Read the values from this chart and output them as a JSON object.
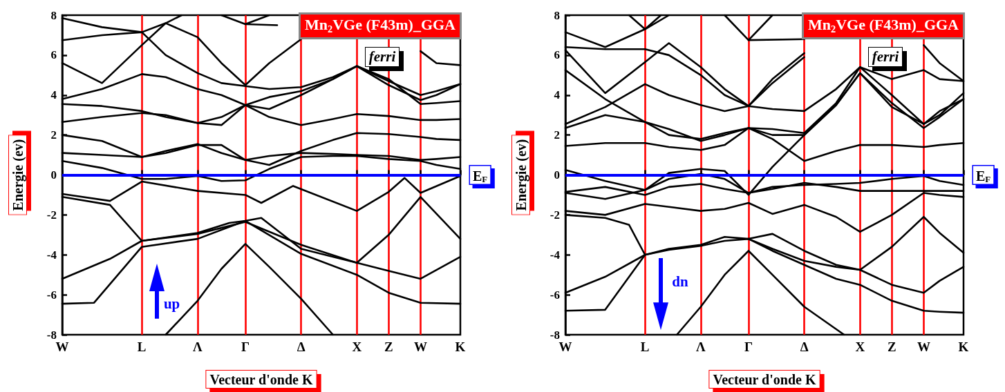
{
  "chart_data": [
    {
      "type": "line",
      "xlabel": "Vecteur d'onde K",
      "ylabel": "Energie (ev)",
      "annotations": [
        "Mn$_{2}$VGe (F43m)_GGA",
        "ferri",
        "up"
      ],
      "categories": [
        "W",
        null,
        null,
        null,
        null,
        null,
        null,
        null,
        null,
        null,
        "L",
        null,
        null,
        null,
        null,
        null,
        null,
        "Λ",
        null,
        null,
        null,
        null,
        null,
        "Γ",
        null,
        null,
        null,
        null,
        null,
        null,
        "Δ",
        null,
        null,
        null,
        null,
        null,
        null,
        "X",
        null,
        null,
        null,
        "Z",
        null,
        null,
        null,
        "W",
        null,
        null,
        null,
        null,
        "K"
      ],
      "ylim": [
        -8,
        8
      ],
      "yticks": [
        -8,
        -6,
        -4,
        -2,
        0,
        2,
        4,
        6,
        8
      ],
      "grid": "x",
      "ref_lines": [
        {
          "axis": "y",
          "value": 0,
          "label": "E$_{F}$",
          "color": "#0000ff"
        }
      ],
      "series": [
        {
          "color": "#000000",
          "values": [
            null,
            null,
            null,
            null,
            null,
            null,
            null,
            null,
            null,
            null,
            null,
            null,
            null,
            -8,
            null,
            null,
            null,
            -6.3,
            null,
            null,
            -4.7,
            null,
            null,
            -3.45,
            null,
            null,
            -4.6,
            null,
            null,
            null,
            -6.2,
            null,
            null,
            null,
            -8,
            null,
            null,
            null,
            null,
            null,
            null,
            null,
            null,
            null,
            null,
            null,
            null,
            null,
            null,
            null,
            null
          ]
        },
        {
          "color": "#000000",
          "values": [
            -6.45,
            null,
            null,
            null,
            -6.4,
            null,
            null,
            null,
            null,
            null,
            -3.6,
            null,
            null,
            null,
            null,
            null,
            null,
            -3.2,
            null,
            null,
            null,
            null,
            null,
            -2.3,
            null,
            null,
            null,
            null,
            null,
            null,
            -3.95,
            null,
            null,
            null,
            null,
            null,
            null,
            -5.0,
            null,
            null,
            null,
            -5.9,
            null,
            null,
            null,
            -6.4,
            null,
            null,
            null,
            null,
            -6.45
          ]
        },
        {
          "color": "#000000",
          "values": [
            -5.2,
            null,
            null,
            null,
            null,
            null,
            -4.2,
            null,
            null,
            null,
            -3.3,
            null,
            null,
            null,
            null,
            null,
            null,
            -2.9,
            null,
            null,
            null,
            -2.4,
            null,
            -2.3,
            null,
            -2.15,
            null,
            null,
            null,
            null,
            -3.7,
            null,
            null,
            null,
            null,
            null,
            null,
            -4.4,
            null,
            null,
            null,
            -4.8,
            null,
            null,
            null,
            -5.2,
            null,
            null,
            null,
            null,
            -4.1
          ]
        },
        {
          "color": "#000000",
          "values": [
            -1.1,
            null,
            null,
            null,
            null,
            null,
            -1.5,
            null,
            null,
            null,
            -3.3,
            null,
            null,
            null,
            null,
            null,
            null,
            -2.95,
            null,
            null,
            null,
            null,
            null,
            -2.35,
            null,
            null,
            null,
            null,
            null,
            null,
            -3.5,
            null,
            null,
            null,
            null,
            null,
            null,
            -4.4,
            null,
            null,
            null,
            -3.0,
            null,
            null,
            null,
            -1.1,
            null,
            null,
            null,
            null,
            -3.2
          ]
        },
        {
          "color": "#000000",
          "values": [
            -0.95,
            null,
            null,
            null,
            null,
            null,
            -1.3,
            null,
            null,
            null,
            -0.33,
            null,
            null,
            null,
            null,
            null,
            null,
            -0.8,
            null,
            null,
            null,
            null,
            null,
            -1.0,
            null,
            -1.4,
            null,
            null,
            null,
            -0.55,
            null,
            null,
            null,
            null,
            null,
            null,
            null,
            -1.8,
            null,
            null,
            null,
            -0.85,
            null,
            -0.15,
            null,
            -0.9,
            null,
            null,
            null,
            null,
            -0.05
          ]
        },
        {
          "color": "#000000",
          "values": [
            0.7,
            null,
            null,
            null,
            null,
            0.35,
            null,
            null,
            null,
            null,
            -0.2,
            null,
            null,
            -0.2,
            null,
            null,
            null,
            -0.05,
            null,
            null,
            -0.3,
            null,
            null,
            -0.27,
            null,
            null,
            0.3,
            null,
            null,
            null,
            0.9,
            null,
            null,
            null,
            0.95,
            null,
            null,
            0.95,
            null,
            null,
            null,
            0.8,
            null,
            null,
            null,
            0.7,
            null,
            0.5,
            null,
            null,
            0.3
          ]
        },
        {
          "color": "#000000",
          "values": [
            1.1,
            null,
            null,
            null,
            null,
            1.0,
            null,
            null,
            null,
            null,
            0.9,
            null,
            null,
            1.2,
            null,
            null,
            null,
            1.55,
            null,
            null,
            1.1,
            null,
            null,
            0.75,
            null,
            null,
            0.95,
            null,
            null,
            null,
            1.1,
            null,
            null,
            null,
            1.05,
            null,
            null,
            1.0,
            null,
            null,
            null,
            0.95,
            null,
            null,
            null,
            0.75,
            null,
            0.8,
            null,
            null,
            0.9
          ]
        },
        {
          "color": "#000000",
          "values": [
            2.0,
            null,
            null,
            null,
            null,
            1.7,
            null,
            null,
            null,
            null,
            0.9,
            null,
            null,
            1.1,
            null,
            null,
            null,
            1.5,
            null,
            null,
            1.5,
            null,
            null,
            0.75,
            null,
            null,
            0.5,
            null,
            null,
            null,
            1.2,
            null,
            null,
            null,
            1.75,
            null,
            null,
            2.1,
            null,
            null,
            null,
            2.05,
            null,
            null,
            null,
            1.9,
            null,
            1.8,
            null,
            null,
            1.75
          ]
        },
        {
          "color": "#000000",
          "values": [
            2.65,
            null,
            null,
            null,
            null,
            2.9,
            null,
            null,
            null,
            null,
            3.1,
            null,
            null,
            3.0,
            null,
            null,
            null,
            2.6,
            null,
            null,
            2.5,
            null,
            null,
            3.5,
            null,
            null,
            2.9,
            null,
            null,
            null,
            2.5,
            null,
            null,
            null,
            2.8,
            null,
            null,
            3.05,
            null,
            null,
            null,
            2.95,
            null,
            null,
            null,
            2.75,
            null,
            2.75,
            null,
            null,
            2.8
          ]
        },
        {
          "color": "#000000",
          "values": [
            3.55,
            null,
            null,
            null,
            null,
            3.45,
            null,
            null,
            null,
            null,
            3.2,
            null,
            null,
            2.9,
            null,
            null,
            null,
            2.6,
            null,
            null,
            2.9,
            null,
            null,
            3.5,
            null,
            null,
            3.3,
            null,
            null,
            null,
            4.0,
            null,
            null,
            null,
            4.8,
            null,
            null,
            5.45,
            null,
            null,
            null,
            4.5,
            null,
            null,
            null,
            3.75,
            null,
            4.0,
            null,
            null,
            4.55
          ]
        },
        {
          "color": "#000000",
          "values": [
            3.8,
            null,
            null,
            null,
            null,
            4.3,
            null,
            null,
            null,
            null,
            5.05,
            null,
            null,
            4.9,
            null,
            null,
            null,
            4.3,
            null,
            null,
            4.0,
            null,
            null,
            3.5,
            null,
            null,
            3.9,
            null,
            null,
            null,
            4.2,
            null,
            null,
            null,
            4.8,
            null,
            null,
            5.45,
            null,
            null,
            null,
            4.8,
            null,
            null,
            null,
            3.55,
            null,
            3.6,
            null,
            null,
            3.7
          ]
        },
        {
          "color": "#000000",
          "values": [
            5.6,
            null,
            null,
            null,
            null,
            4.6,
            null,
            null,
            null,
            null,
            6.5,
            null,
            null,
            7.6,
            null,
            null,
            null,
            6.9,
            null,
            null,
            5.6,
            null,
            null,
            4.5,
            null,
            null,
            5.6,
            null,
            null,
            null,
            6.8,
            null,
            null,
            null,
            null,
            null,
            null,
            null,
            null,
            null,
            null,
            null,
            null,
            null,
            null,
            null,
            null,
            null,
            null,
            null,
            null
          ]
        },
        {
          "color": "#000000",
          "values": [
            6.75,
            null,
            null,
            null,
            null,
            7.0,
            null,
            null,
            null,
            null,
            7.15,
            null,
            null,
            6.0,
            null,
            null,
            null,
            5.1,
            null,
            null,
            4.6,
            null,
            null,
            4.45,
            null,
            null,
            4.3,
            null,
            null,
            null,
            4.4,
            null,
            null,
            null,
            4.9,
            null,
            null,
            5.45,
            null,
            null,
            null,
            4.7,
            null,
            null,
            null,
            4.0,
            null,
            4.2,
            null,
            null,
            4.55
          ]
        },
        {
          "color": "#000000",
          "values": [
            7.85,
            null,
            null,
            null,
            null,
            7.4,
            null,
            null,
            null,
            null,
            7.15,
            null,
            null,
            7.6,
            null,
            8,
            null,
            null,
            null,
            null,
            null,
            null,
            null,
            null,
            null,
            null,
            null,
            null,
            null,
            null,
            null,
            null,
            null,
            null,
            null,
            null,
            null,
            null,
            null,
            null,
            null,
            null,
            null,
            null,
            null,
            null,
            null,
            null,
            null,
            null,
            null
          ]
        },
        {
          "color": "#000000",
          "values": [
            null,
            null,
            null,
            null,
            null,
            null,
            null,
            null,
            null,
            null,
            null,
            null,
            null,
            null,
            null,
            null,
            null,
            null,
            null,
            null,
            8,
            null,
            null,
            7.55,
            null,
            null,
            8,
            null,
            null,
            null,
            null,
            null,
            null,
            null,
            null,
            null,
            null,
            null,
            null,
            null,
            null,
            null,
            null,
            null,
            null,
            null,
            null,
            null,
            null,
            null,
            null
          ]
        },
        {
          "color": "#000000",
          "values": [
            null,
            null,
            null,
            null,
            null,
            null,
            null,
            null,
            null,
            null,
            null,
            null,
            null,
            null,
            null,
            null,
            null,
            null,
            null,
            null,
            null,
            null,
            null,
            7.55,
            null,
            null,
            null,
            7.5,
            null,
            null,
            null,
            null,
            null,
            null,
            null,
            null,
            null,
            null,
            null,
            null,
            null,
            null,
            null,
            null,
            null,
            null,
            null,
            null,
            null,
            null,
            null
          ]
        },
        {
          "color": "#000000",
          "values": [
            null,
            null,
            null,
            null,
            null,
            null,
            null,
            null,
            null,
            null,
            null,
            null,
            null,
            null,
            null,
            null,
            null,
            null,
            null,
            null,
            null,
            null,
            null,
            null,
            null,
            null,
            null,
            null,
            null,
            null,
            null,
            null,
            null,
            null,
            null,
            null,
            null,
            null,
            null,
            null,
            null,
            null,
            null,
            null,
            null,
            6.2,
            null,
            5.6,
            null,
            null,
            5.5
          ]
        }
      ]
    },
    {
      "type": "line",
      "xlabel": "Vecteur d'onde K",
      "ylabel": "Energie (ev)",
      "annotations": [
        "Mn$_{2}$VGe (F43m)_GGA",
        "ferri",
        "dn"
      ],
      "categories": [
        "W",
        null,
        null,
        null,
        null,
        null,
        null,
        null,
        null,
        null,
        "L",
        null,
        null,
        null,
        null,
        null,
        null,
        "Λ",
        null,
        null,
        null,
        null,
        null,
        "Γ",
        null,
        null,
        null,
        null,
        null,
        null,
        "Δ",
        null,
        null,
        null,
        null,
        null,
        null,
        "X",
        null,
        null,
        null,
        "Z",
        null,
        null,
        null,
        "W",
        null,
        null,
        null,
        null,
        "K"
      ],
      "ylim": [
        -8,
        8
      ],
      "yticks": [
        -8,
        -6,
        -4,
        -2,
        0,
        2,
        4,
        6,
        8
      ],
      "grid": "x",
      "ref_lines": [
        {
          "axis": "y",
          "value": 0,
          "label": "E$_{F}$",
          "color": "#0000ff"
        }
      ],
      "series": [
        {
          "color": "#000000",
          "values": [
            null,
            null,
            null,
            null,
            null,
            null,
            null,
            null,
            null,
            null,
            null,
            null,
            null,
            null,
            -8,
            null,
            null,
            -6.6,
            null,
            null,
            -5.0,
            null,
            null,
            -3.8,
            null,
            null,
            -5.0,
            null,
            null,
            null,
            -6.6,
            null,
            null,
            null,
            null,
            -8,
            null,
            null,
            null,
            null,
            null,
            null,
            null,
            null,
            null,
            null,
            null,
            null,
            null,
            null,
            null
          ]
        },
        {
          "color": "#000000",
          "values": [
            -6.8,
            null,
            null,
            null,
            null,
            -6.75,
            null,
            null,
            null,
            null,
            -4.0,
            null,
            null,
            -3.75,
            null,
            null,
            null,
            -3.55,
            null,
            null,
            -3.3,
            null,
            null,
            -3.2,
            null,
            null,
            -3.7,
            null,
            null,
            null,
            -4.3,
            null,
            null,
            null,
            -4.6,
            null,
            null,
            -4.75,
            null,
            null,
            null,
            -5.5,
            null,
            null,
            null,
            -5.9,
            null,
            -5.3,
            null,
            null,
            -4.6
          ]
        },
        {
          "color": "#000000",
          "values": [
            -5.9,
            null,
            null,
            null,
            null,
            -5.1,
            null,
            null,
            null,
            null,
            -4.0,
            null,
            null,
            -3.7,
            null,
            null,
            null,
            -3.5,
            null,
            null,
            -3.1,
            null,
            null,
            -3.2,
            null,
            null,
            -2.95,
            null,
            null,
            null,
            -3.8,
            null,
            null,
            null,
            -4.5,
            null,
            null,
            -4.75,
            null,
            null,
            null,
            -3.6,
            null,
            null,
            null,
            -2.1,
            null,
            -2.9,
            null,
            null,
            -3.9
          ]
        },
        {
          "color": "#000000",
          "values": [
            null,
            null,
            null,
            null,
            null,
            null,
            null,
            null,
            null,
            null,
            null,
            null,
            null,
            null,
            null,
            null,
            null,
            null,
            null,
            null,
            null,
            null,
            null,
            -3.2,
            null,
            null,
            -3.8,
            null,
            null,
            null,
            -4.5,
            null,
            null,
            null,
            -5.2,
            null,
            null,
            -5.5,
            null,
            null,
            null,
            -6.3,
            null,
            null,
            null,
            -6.8,
            null,
            -6.85,
            null,
            null,
            -6.9
          ]
        },
        {
          "color": "#000000",
          "values": [
            -2.0,
            null,
            null,
            null,
            null,
            -2.15,
            null,
            null,
            -2.5,
            null,
            -4.0,
            null,
            null,
            null,
            null,
            null,
            null,
            null,
            null,
            null,
            null,
            null,
            null,
            null,
            null,
            null,
            null,
            null,
            null,
            null,
            null,
            null,
            null,
            null,
            null,
            null,
            null,
            null,
            null,
            null,
            null,
            null,
            null,
            null,
            null,
            null,
            null,
            null,
            null,
            null,
            null
          ]
        },
        {
          "color": "#000000",
          "values": [
            -1.8,
            null,
            null,
            null,
            null,
            -2.0,
            null,
            null,
            null,
            null,
            -1.45,
            null,
            null,
            -1.6,
            null,
            null,
            null,
            -1.8,
            null,
            null,
            -1.7,
            null,
            null,
            -1.4,
            null,
            null,
            -1.95,
            null,
            null,
            null,
            -1.5,
            null,
            null,
            null,
            -2.1,
            null,
            null,
            -2.85,
            null,
            null,
            null,
            -2.0,
            null,
            null,
            null,
            -0.9,
            null,
            -1.0,
            null,
            null,
            -1.1
          ]
        },
        {
          "color": "#000000",
          "values": [
            -0.85,
            null,
            null,
            null,
            null,
            -0.6,
            null,
            null,
            null,
            null,
            -1.0,
            null,
            null,
            -0.6,
            null,
            null,
            null,
            -0.45,
            null,
            null,
            -0.7,
            null,
            null,
            -0.9,
            null,
            null,
            -0.7,
            null,
            null,
            null,
            -0.4,
            null,
            null,
            null,
            -0.6,
            null,
            null,
            -0.8,
            null,
            null,
            null,
            -0.8,
            null,
            null,
            null,
            -0.8,
            null,
            -0.8,
            null,
            null,
            -0.8
          ]
        },
        {
          "color": "#000000",
          "values": [
            -0.9,
            null,
            null,
            null,
            null,
            -1.2,
            null,
            null,
            null,
            null,
            -0.75,
            null,
            null,
            -0.2,
            null,
            null,
            null,
            0.05,
            null,
            null,
            -0.2,
            null,
            null,
            -0.9,
            null,
            null,
            -0.6,
            null,
            null,
            null,
            -0.5,
            null,
            null,
            null,
            -0.45,
            null,
            null,
            -0.4,
            null,
            null,
            null,
            -0.2,
            null,
            null,
            null,
            -0.05,
            null,
            -0.3,
            null,
            null,
            -0.5
          ]
        },
        {
          "color": "#000000",
          "values": [
            0.25,
            null,
            null,
            null,
            null,
            -0.3,
            null,
            null,
            null,
            null,
            -0.75,
            null,
            null,
            0.1,
            null,
            null,
            null,
            0.3,
            null,
            null,
            0.2,
            null,
            null,
            -1.0,
            null,
            null,
            0.4,
            null,
            null,
            null,
            2.0,
            null,
            null,
            null,
            3.5,
            null,
            null,
            5.1,
            null,
            null,
            null,
            3.6,
            null,
            null,
            null,
            2.35,
            null,
            2.9,
            null,
            null,
            3.8
          ]
        },
        {
          "color": "#000000",
          "values": [
            1.45,
            null,
            null,
            null,
            null,
            1.6,
            null,
            null,
            null,
            null,
            1.6,
            null,
            null,
            1.4,
            null,
            null,
            null,
            1.25,
            null,
            null,
            1.5,
            null,
            null,
            2.35,
            null,
            null,
            1.8,
            null,
            null,
            null,
            0.7,
            null,
            null,
            null,
            1.2,
            null,
            null,
            1.5,
            null,
            null,
            null,
            1.5,
            null,
            null,
            null,
            1.4,
            null,
            1.5,
            null,
            null,
            1.6
          ]
        },
        {
          "color": "#000000",
          "values": [
            2.35,
            null,
            null,
            null,
            null,
            3.0,
            null,
            null,
            null,
            null,
            2.65,
            null,
            null,
            2.0,
            null,
            null,
            null,
            1.8,
            null,
            null,
            2.1,
            null,
            null,
            2.35,
            null,
            null,
            2.3,
            null,
            null,
            null,
            2.1,
            null,
            null,
            null,
            3.6,
            null,
            null,
            5.4,
            null,
            null,
            null,
            4.0,
            null,
            null,
            null,
            2.55,
            null,
            3.0,
            null,
            null,
            4.1
          ]
        },
        {
          "color": "#000000",
          "values": [
            2.55,
            null,
            null,
            null,
            null,
            3.4,
            null,
            null,
            null,
            null,
            4.55,
            null,
            null,
            4.0,
            null,
            null,
            null,
            3.5,
            null,
            null,
            3.2,
            null,
            null,
            3.45,
            null,
            null,
            4.6,
            null,
            null,
            null,
            5.9,
            null,
            null,
            null,
            null,
            null,
            null,
            null,
            null,
            null,
            null,
            null,
            null,
            null,
            null,
            null,
            null,
            null,
            null,
            null,
            null
          ]
        },
        {
          "color": "#000000",
          "values": [
            5.25,
            null,
            null,
            null,
            null,
            3.8,
            null,
            null,
            null,
            null,
            2.65,
            null,
            null,
            2.3,
            null,
            null,
            null,
            1.7,
            null,
            null,
            2.0,
            null,
            null,
            2.35,
            null,
            null,
            2.0,
            null,
            null,
            null,
            2.0,
            null,
            null,
            null,
            3.5,
            null,
            null,
            5.1,
            null,
            null,
            null,
            3.4,
            null,
            null,
            null,
            2.55,
            null,
            3.2,
            null,
            null,
            3.8
          ]
        },
        {
          "color": "#000000",
          "values": [
            6.25,
            null,
            null,
            null,
            null,
            4.1,
            null,
            null,
            null,
            null,
            5.65,
            null,
            null,
            6.6,
            null,
            null,
            null,
            5.4,
            null,
            null,
            4.3,
            null,
            null,
            3.45,
            null,
            null,
            3.3,
            null,
            null,
            null,
            3.2,
            null,
            null,
            null,
            4.3,
            null,
            null,
            5.4,
            null,
            null,
            null,
            4.8,
            null,
            null,
            null,
            5.25,
            null,
            4.8,
            null,
            null,
            4.7
          ]
        },
        {
          "color": "#000000",
          "values": [
            6.4,
            null,
            null,
            null,
            null,
            6.3,
            null,
            null,
            null,
            null,
            6.3,
            null,
            null,
            6.0,
            null,
            null,
            null,
            5.0,
            null,
            null,
            4.0,
            null,
            null,
            3.45,
            null,
            null,
            4.8,
            null,
            null,
            null,
            6.1,
            null,
            null,
            null,
            null,
            null,
            null,
            null,
            null,
            null,
            null,
            null,
            null,
            null,
            null,
            null,
            null,
            null,
            null,
            null,
            null
          ]
        },
        {
          "color": "#000000",
          "values": [
            7.15,
            null,
            null,
            null,
            null,
            6.4,
            null,
            null,
            null,
            null,
            7.3,
            null,
            null,
            8,
            null,
            null,
            null,
            null,
            null,
            null,
            null,
            null,
            null,
            null,
            null,
            null,
            null,
            null,
            null,
            null,
            null,
            null,
            null,
            null,
            null,
            null,
            null,
            null,
            null,
            null,
            null,
            null,
            null,
            null,
            null,
            null,
            null,
            null,
            null,
            null,
            null
          ]
        },
        {
          "color": "#000000",
          "values": [
            null,
            null,
            null,
            null,
            null,
            null,
            null,
            null,
            8,
            null,
            7.3,
            null,
            8,
            null,
            null,
            null,
            null,
            null,
            null,
            null,
            null,
            null,
            null,
            null,
            null,
            null,
            null,
            null,
            null,
            null,
            null,
            null,
            null,
            null,
            null,
            null,
            null,
            null,
            null,
            null,
            null,
            null,
            null,
            null,
            null,
            null,
            null,
            null,
            null,
            null,
            null
          ]
        },
        {
          "color": "#000000",
          "values": [
            null,
            null,
            null,
            null,
            null,
            null,
            null,
            null,
            null,
            null,
            null,
            null,
            null,
            null,
            null,
            null,
            null,
            null,
            null,
            null,
            8,
            null,
            null,
            6.75,
            null,
            null,
            8,
            null,
            null,
            null,
            null,
            null,
            null,
            null,
            null,
            null,
            null,
            null,
            null,
            null,
            null,
            null,
            null,
            null,
            null,
            null,
            null,
            null,
            null,
            null,
            null
          ]
        },
        {
          "color": "#000000",
          "values": [
            null,
            null,
            null,
            null,
            null,
            null,
            null,
            null,
            null,
            null,
            null,
            null,
            null,
            null,
            null,
            null,
            null,
            null,
            null,
            null,
            null,
            null,
            null,
            6.75,
            null,
            null,
            null,
            null,
            null,
            null,
            6.8,
            null,
            null,
            null,
            null,
            null,
            null,
            null,
            null,
            null,
            null,
            null,
            null,
            null,
            null,
            null,
            null,
            null,
            null,
            null,
            null
          ]
        },
        {
          "color": "#000000",
          "values": [
            null,
            null,
            null,
            null,
            null,
            null,
            null,
            null,
            null,
            null,
            null,
            null,
            null,
            null,
            null,
            null,
            null,
            null,
            null,
            null,
            null,
            null,
            null,
            null,
            null,
            null,
            null,
            null,
            null,
            null,
            null,
            null,
            null,
            null,
            null,
            null,
            null,
            null,
            null,
            null,
            null,
            null,
            null,
            null,
            null,
            6.5,
            null,
            5.6,
            null,
            null,
            4.7
          ]
        }
      ]
    }
  ]
}
